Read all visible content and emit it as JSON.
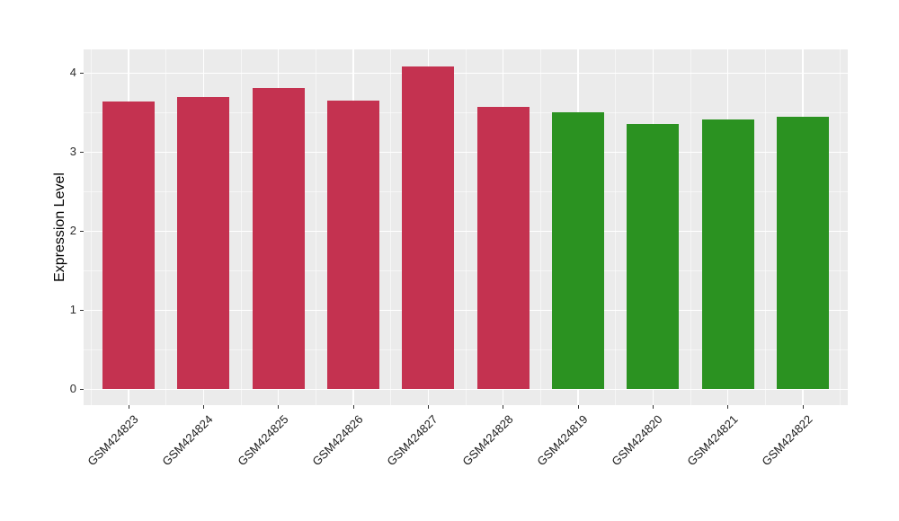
{
  "chart_data": {
    "type": "bar",
    "title": "",
    "xlabel": "",
    "ylabel": "Expression Level",
    "categories": [
      "GSM424823",
      "GSM424824",
      "GSM424825",
      "GSM424826",
      "GSM424827",
      "GSM424828",
      "GSM424819",
      "GSM424820",
      "GSM424821",
      "GSM424822"
    ],
    "values": [
      3.64,
      3.7,
      3.81,
      3.65,
      4.08,
      3.57,
      3.51,
      3.36,
      3.41,
      3.45
    ],
    "bar_colors": [
      "red",
      "red",
      "red",
      "red",
      "red",
      "red",
      "green",
      "green",
      "green",
      "green"
    ],
    "color_hex": {
      "red": "#C43250",
      "green": "#2B9221"
    },
    "yticks": [
      0,
      1,
      2,
      3,
      4
    ],
    "minor_yticks": [
      0.5,
      1.5,
      2.5,
      3.5
    ],
    "ylim": [
      -0.2,
      4.3
    ],
    "bar_width_fraction": 0.7,
    "grid": "major-white-minor-faint",
    "legend": "none",
    "panel_bg": "#EBEBEB",
    "grid_color": "#FFFFFF",
    "tick_color": "#333333"
  }
}
